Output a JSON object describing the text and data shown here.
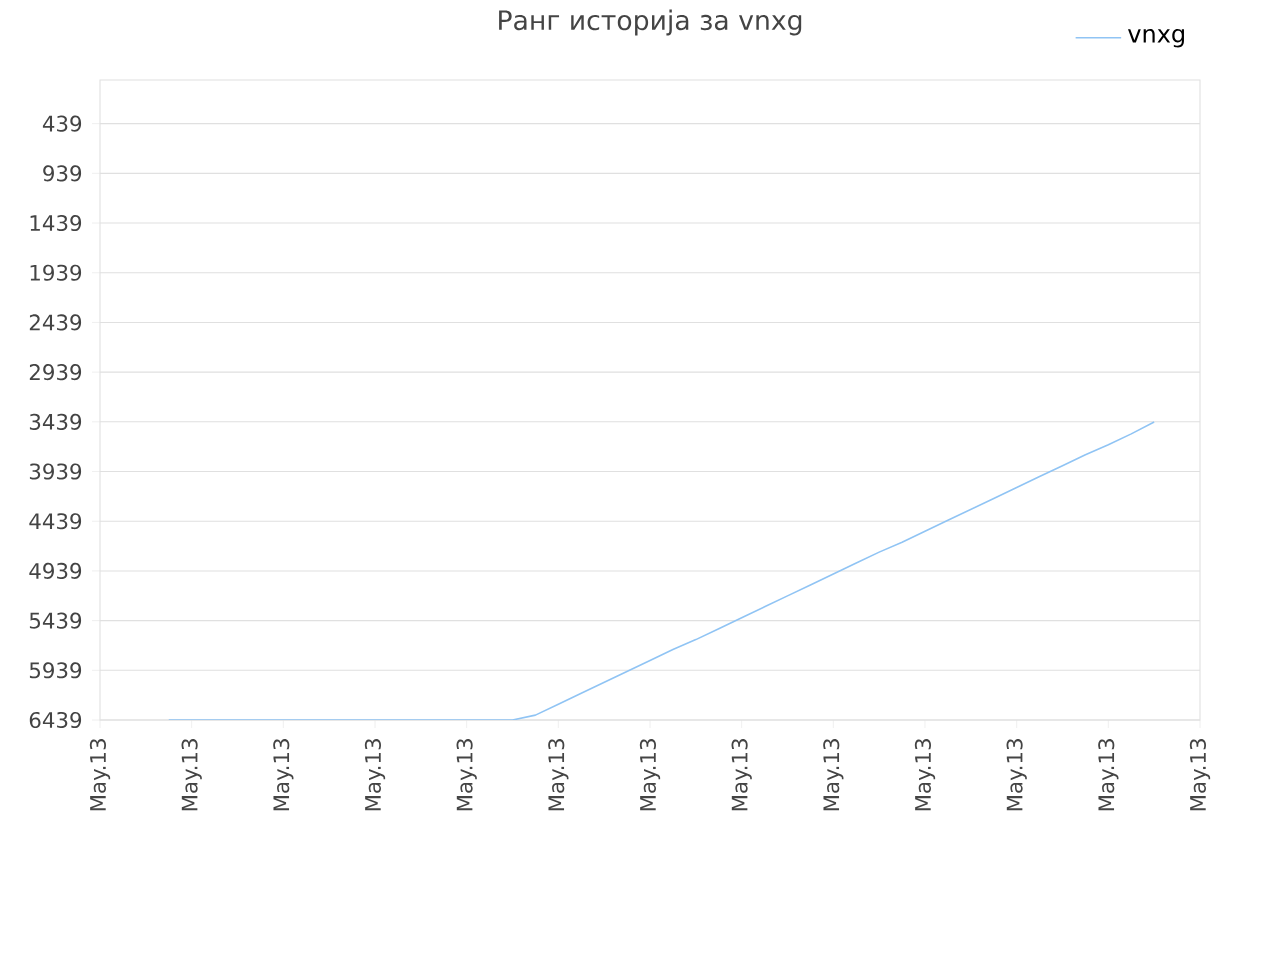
{
  "chart_data": {
    "type": "line",
    "title": "Ранг историја за vnxg",
    "categories": [
      "May.13",
      null,
      null,
      null,
      "May.13",
      null,
      null,
      null,
      "May.13",
      null,
      null,
      null,
      "May.13",
      null,
      null,
      null,
      "May.13",
      null,
      null,
      null,
      "May.13",
      null,
      null,
      null,
      "May.13",
      null,
      null,
      null,
      "May.13",
      null,
      null,
      null,
      "May.13",
      null,
      null,
      null,
      "May.13",
      null,
      null,
      null,
      "May.13",
      null,
      null,
      null,
      "May.13",
      null,
      null,
      null,
      "May.13"
    ],
    "series": [
      {
        "name": "vnxg",
        "color": "#90c4f4",
        "values": [
          null,
          null,
          null,
          6439,
          6439,
          6439,
          6439,
          6439,
          6439,
          6439,
          6439,
          6439,
          6439,
          6439,
          6439,
          6439,
          6439,
          6439,
          6439,
          6390,
          6280,
          6170,
          6060,
          5950,
          5840,
          5730,
          5630,
          5520,
          5410,
          5300,
          5190,
          5080,
          4970,
          4860,
          4750,
          4650,
          4540,
          4430,
          4320,
          4210,
          4100,
          3990,
          3880,
          3770,
          3670,
          3560,
          3440,
          null,
          null
        ]
      }
    ],
    "ylim": [
      6439,
      0
    ],
    "yticks": [
      439,
      939,
      1439,
      1939,
      2439,
      2939,
      3439,
      3939,
      4439,
      4939,
      5439,
      5939,
      6439
    ],
    "grid": "y",
    "legend": "top right",
    "marker": "none",
    "line_style": "solid"
  }
}
